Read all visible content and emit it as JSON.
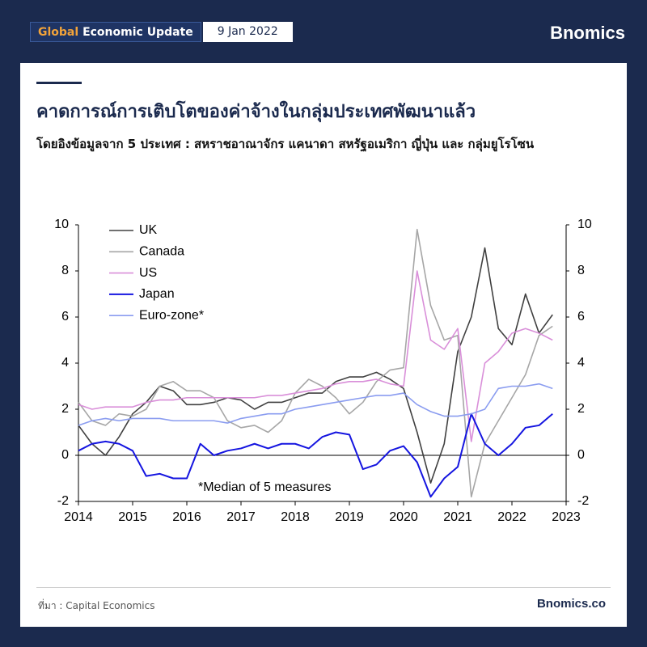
{
  "header": {
    "badge_highlight": "Global",
    "badge_rest": "Economic Update",
    "date": "9 Jan 2022",
    "logo": "Bnomics"
  },
  "title": "คาดการณ์การเติบโตของค่าจ้างในกลุ่มประเทศพัฒนาแล้ว",
  "subtitle": "โดยอิงข้อมูลจาก 5 ประเทศ : สหราชอาณาจักร แคนาดา สหรัฐอเมริกา ญี่ปุ่น และ กลุ่มยูโรโซน",
  "footer": {
    "source": "ที่มา : Capital Economics",
    "site": "Bnomics.co"
  },
  "chart_data": {
    "type": "line",
    "annotation": "*Median of 5 measures",
    "legend": "upper left",
    "x": [
      2014,
      2014.25,
      2014.5,
      2014.75,
      2015,
      2015.25,
      2015.5,
      2015.75,
      2016,
      2016.25,
      2016.5,
      2016.75,
      2017,
      2017.25,
      2017.5,
      2017.75,
      2018,
      2018.25,
      2018.5,
      2018.75,
      2019,
      2019.25,
      2019.5,
      2019.75,
      2020,
      2020.25,
      2020.5,
      2020.75,
      2021,
      2021.25,
      2021.5,
      2021.75,
      2022,
      2022.25,
      2022.5,
      2022.75
    ],
    "series": [
      {
        "name": "UK",
        "color": "#404040",
        "values": [
          1.3,
          0.5,
          0.0,
          0.8,
          1.8,
          2.3,
          3.0,
          2.8,
          2.2,
          2.2,
          2.3,
          2.5,
          2.4,
          2.0,
          2.3,
          2.3,
          2.5,
          2.7,
          2.7,
          3.2,
          3.4,
          3.4,
          3.6,
          3.3,
          2.9,
          1.0,
          -1.2,
          0.5,
          4.5,
          6.0,
          9.0,
          5.5,
          4.8,
          7.0,
          5.3,
          6.1
        ]
      },
      {
        "name": "Canada",
        "color": "#a6a6a6",
        "values": [
          2.3,
          1.5,
          1.3,
          1.8,
          1.7,
          2.0,
          3.0,
          3.2,
          2.8,
          2.8,
          2.5,
          1.5,
          1.2,
          1.3,
          1.0,
          1.5,
          2.7,
          3.3,
          3.0,
          2.5,
          1.8,
          2.3,
          3.2,
          3.7,
          3.8,
          9.8,
          6.5,
          5.0,
          5.2,
          -1.8,
          0.5,
          1.5,
          2.5,
          3.5,
          5.2,
          5.6
        ]
      },
      {
        "name": "US",
        "color": "#d98fd9",
        "values": [
          2.2,
          2.0,
          2.1,
          2.1,
          2.1,
          2.3,
          2.4,
          2.4,
          2.5,
          2.5,
          2.5,
          2.5,
          2.5,
          2.5,
          2.6,
          2.6,
          2.7,
          2.8,
          2.9,
          3.1,
          3.2,
          3.2,
          3.3,
          3.1,
          3.0,
          8.0,
          5.0,
          4.6,
          5.5,
          0.6,
          4.0,
          4.5,
          5.3,
          5.5,
          5.3,
          5.0
        ]
      },
      {
        "name": "Japan",
        "color": "#1515e0",
        "values": [
          0.2,
          0.5,
          0.6,
          0.5,
          0.2,
          -0.9,
          -0.8,
          -1.0,
          -1.0,
          0.5,
          0.0,
          0.2,
          0.3,
          0.5,
          0.3,
          0.5,
          0.5,
          0.3,
          0.8,
          1.0,
          0.9,
          -0.6,
          -0.4,
          0.2,
          0.4,
          -0.3,
          -1.8,
          -1.0,
          -0.5,
          1.8,
          0.5,
          0.0,
          0.5,
          1.2,
          1.3,
          1.8
        ]
      },
      {
        "name": "Euro-zone*",
        "color": "#8a9cf0",
        "values": [
          1.3,
          1.5,
          1.6,
          1.5,
          1.6,
          1.6,
          1.6,
          1.5,
          1.5,
          1.5,
          1.5,
          1.4,
          1.6,
          1.7,
          1.8,
          1.8,
          2.0,
          2.1,
          2.2,
          2.3,
          2.4,
          2.5,
          2.6,
          2.6,
          2.7,
          2.2,
          1.9,
          1.7,
          1.7,
          1.8,
          2.0,
          2.9,
          3.0,
          3.0,
          3.1,
          2.9
        ]
      }
    ],
    "xlim": [
      2014,
      2023
    ],
    "xticks": [
      2014,
      2015,
      2016,
      2017,
      2018,
      2019,
      2020,
      2021,
      2022,
      2023
    ],
    "ylim": [
      -2,
      10
    ],
    "yticks": [
      -2,
      0,
      2,
      4,
      6,
      8,
      10
    ],
    "y2lim": [
      -2,
      10
    ],
    "y2ticks": [
      -2,
      0,
      2,
      4,
      6,
      8,
      10
    ]
  }
}
